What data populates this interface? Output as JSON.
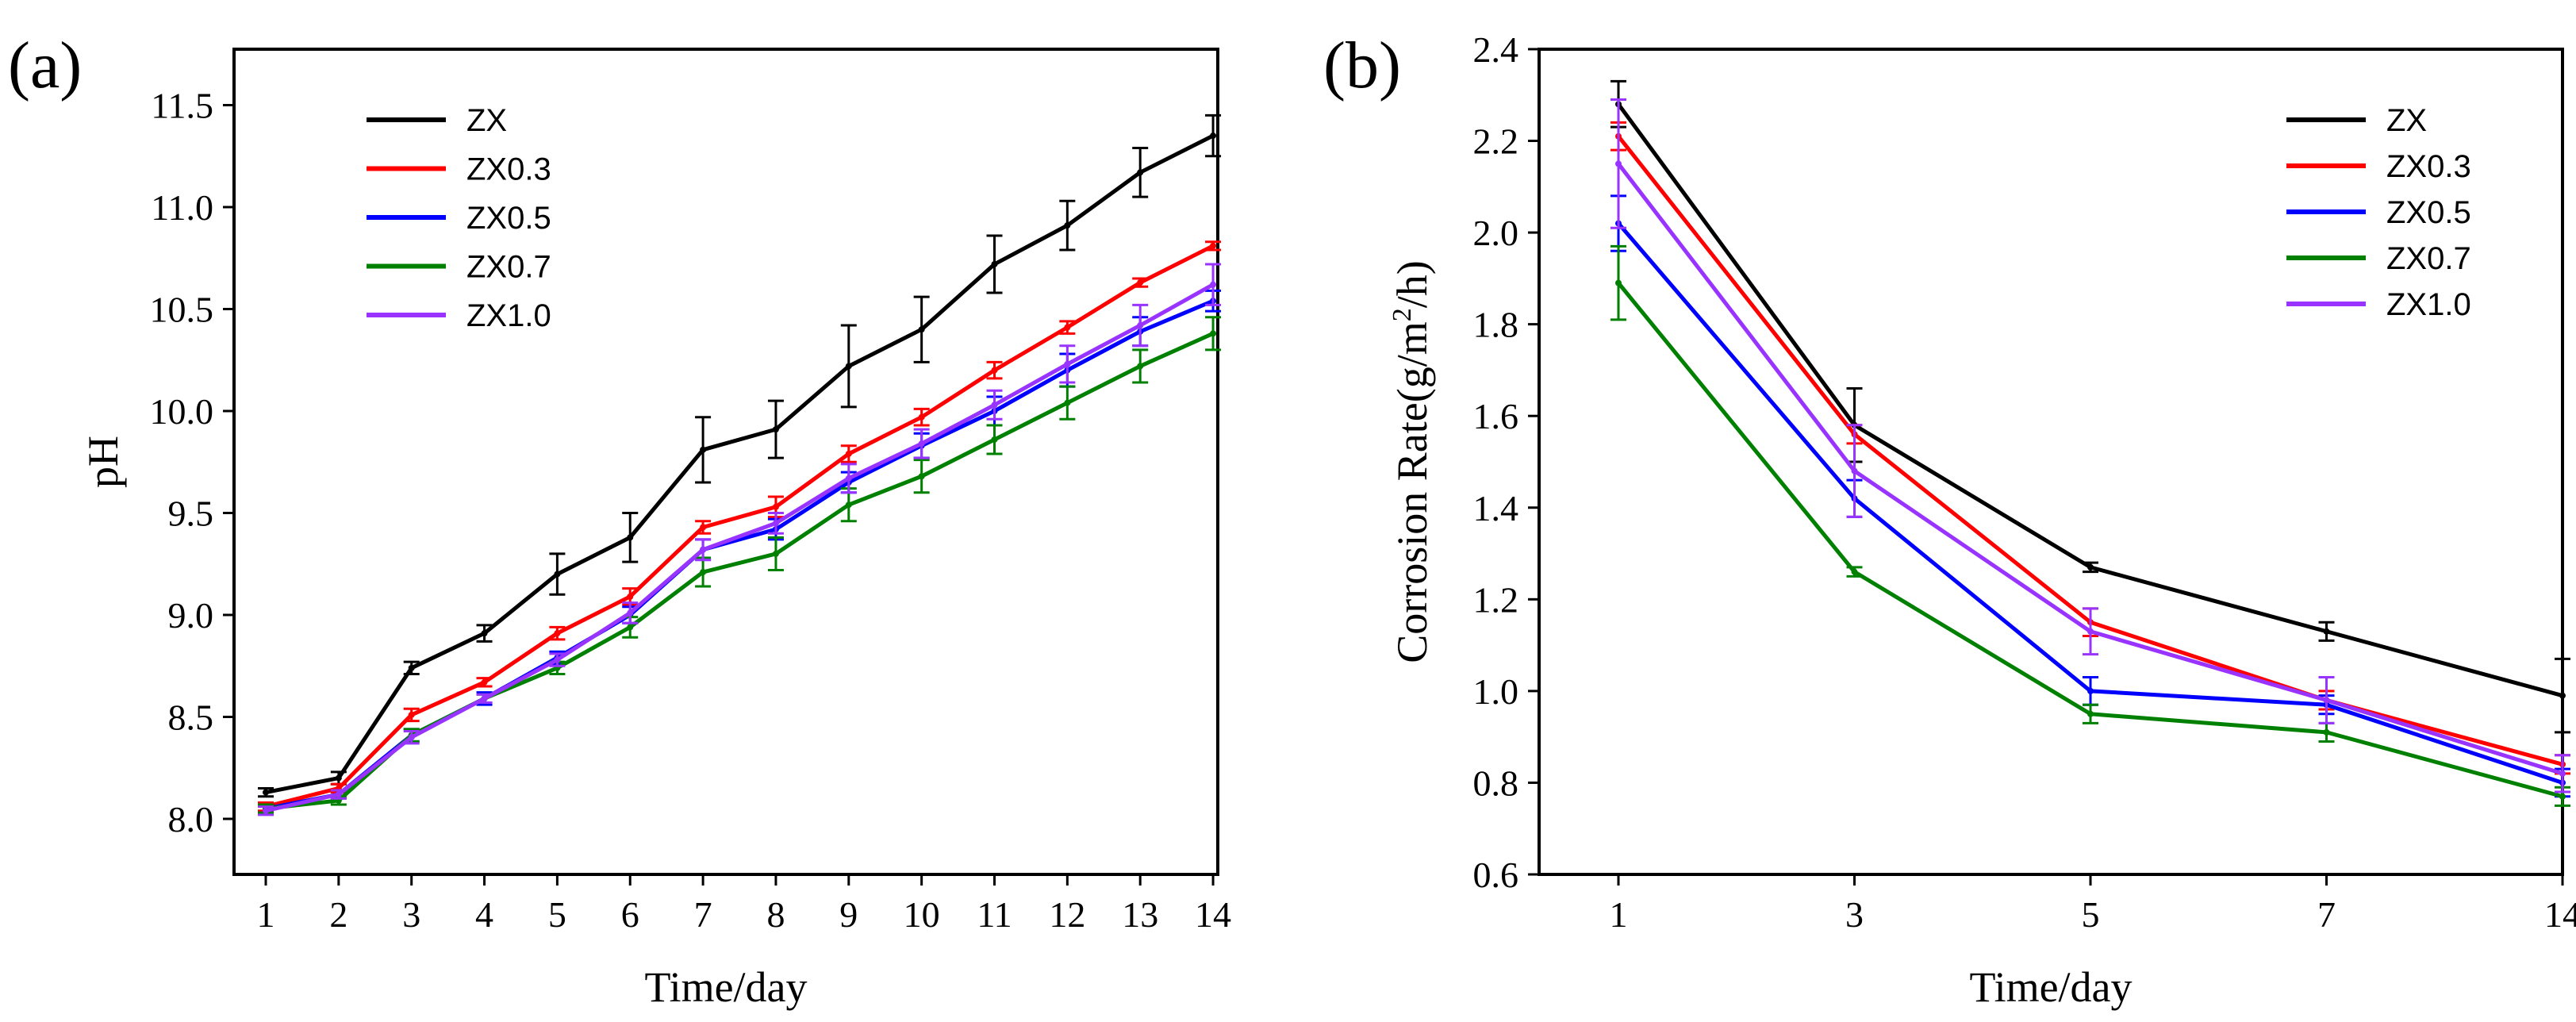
{
  "chart_data": [
    {
      "type": "line",
      "panel_label": "(a)",
      "xlabel": "Time/day",
      "ylabel": "pH",
      "ylim": [
        7.75,
        11.75
      ],
      "x_ticks": [
        "1",
        "2",
        "3",
        "4",
        "5",
        "6",
        "7",
        "8",
        "9",
        "10",
        "11",
        "12",
        "13",
        "14"
      ],
      "y_ticks": [
        "8.0",
        "8.5",
        "9.0",
        "9.5",
        "10.0",
        "10.5",
        "11.0",
        "11.5"
      ],
      "x": [
        1,
        2,
        3,
        4,
        5,
        6,
        7,
        8,
        9,
        10,
        11,
        12,
        13,
        14
      ],
      "legend_position": "top-left",
      "series": [
        {
          "name": "ZX",
          "color": "#000000",
          "values": [
            8.13,
            8.2,
            8.74,
            8.91,
            9.2,
            9.38,
            9.81,
            9.91,
            10.22,
            10.4,
            10.72,
            10.91,
            11.17,
            11.35
          ],
          "errors": [
            0.02,
            0.03,
            0.03,
            0.04,
            0.1,
            0.12,
            0.16,
            0.14,
            0.2,
            0.16,
            0.14,
            0.12,
            0.12,
            0.1
          ]
        },
        {
          "name": "ZX0.3",
          "color": "#ff0000",
          "values": [
            8.06,
            8.15,
            8.51,
            8.67,
            8.91,
            9.09,
            9.43,
            9.53,
            9.79,
            9.97,
            10.2,
            10.41,
            10.63,
            10.81
          ],
          "errors": [
            0.02,
            0.02,
            0.03,
            0.02,
            0.03,
            0.04,
            0.03,
            0.05,
            0.04,
            0.04,
            0.04,
            0.03,
            0.02,
            0.02
          ]
        },
        {
          "name": "ZX0.5",
          "color": "#0000ff",
          "values": [
            8.05,
            8.12,
            8.41,
            8.59,
            8.79,
            9.0,
            9.32,
            9.42,
            9.65,
            9.83,
            10.0,
            10.2,
            10.39,
            10.54
          ],
          "errors": [
            0.02,
            0.02,
            0.03,
            0.03,
            0.03,
            0.04,
            0.05,
            0.05,
            0.05,
            0.06,
            0.07,
            0.08,
            0.07,
            0.05
          ]
        },
        {
          "name": "ZX0.7",
          "color": "#008000",
          "values": [
            8.05,
            8.09,
            8.41,
            8.59,
            8.74,
            8.94,
            9.21,
            9.3,
            9.54,
            9.68,
            9.86,
            10.04,
            10.22,
            10.38
          ],
          "errors": [
            0.02,
            0.02,
            0.03,
            0.02,
            0.03,
            0.05,
            0.07,
            0.08,
            0.08,
            0.08,
            0.07,
            0.08,
            0.08,
            0.08
          ]
        },
        {
          "name": "ZX1.0",
          "color": "#9933ff",
          "values": [
            8.04,
            8.12,
            8.4,
            8.59,
            8.78,
            9.01,
            9.32,
            9.45,
            9.67,
            9.84,
            10.03,
            10.23,
            10.42,
            10.62
          ],
          "errors": [
            0.02,
            0.02,
            0.03,
            0.02,
            0.03,
            0.05,
            0.05,
            0.05,
            0.07,
            0.07,
            0.07,
            0.09,
            0.1,
            0.1
          ]
        }
      ]
    },
    {
      "type": "line",
      "panel_label": "(b)",
      "xlabel": "Time/day",
      "ylabel_main": "Corrosion Rate(g/m",
      "ylabel_sup": "2",
      "ylabel_end": "/h)",
      "ylim": [
        0.6,
        2.4
      ],
      "x_ticks": [
        "1",
        "3",
        "5",
        "7",
        "14"
      ],
      "y_ticks": [
        "0.6",
        "0.8",
        "1.0",
        "1.2",
        "1.4",
        "1.6",
        "1.8",
        "2.0",
        "2.2",
        "2.4"
      ],
      "x": [
        "1",
        "3",
        "5",
        "7",
        "14"
      ],
      "legend_position": "top-right",
      "series": [
        {
          "name": "ZX",
          "color": "#000000",
          "values": [
            2.28,
            1.58,
            1.27,
            1.13,
            0.99
          ],
          "errors": [
            0.05,
            0.08,
            0.01,
            0.02,
            0.08
          ]
        },
        {
          "name": "ZX0.3",
          "color": "#ff0000",
          "values": [
            2.21,
            1.56,
            1.15,
            0.98,
            0.84
          ],
          "errors": [
            0.03,
            0.02,
            0.03,
            0.02,
            0.02
          ]
        },
        {
          "name": "ZX0.5",
          "color": "#0000ff",
          "values": [
            2.02,
            1.42,
            1.0,
            0.97,
            0.8
          ],
          "errors": [
            0.06,
            0.04,
            0.03,
            0.02,
            0.03
          ]
        },
        {
          "name": "ZX0.7",
          "color": "#008000",
          "values": [
            1.89,
            1.26,
            0.95,
            0.91,
            0.77
          ],
          "errors": [
            0.08,
            0.01,
            0.02,
            0.02,
            0.02
          ]
        },
        {
          "name": "ZX1.0",
          "color": "#9933ff",
          "values": [
            2.15,
            1.48,
            1.13,
            0.98,
            0.82
          ],
          "errors": [
            0.14,
            0.1,
            0.05,
            0.05,
            0.04
          ]
        }
      ]
    }
  ]
}
